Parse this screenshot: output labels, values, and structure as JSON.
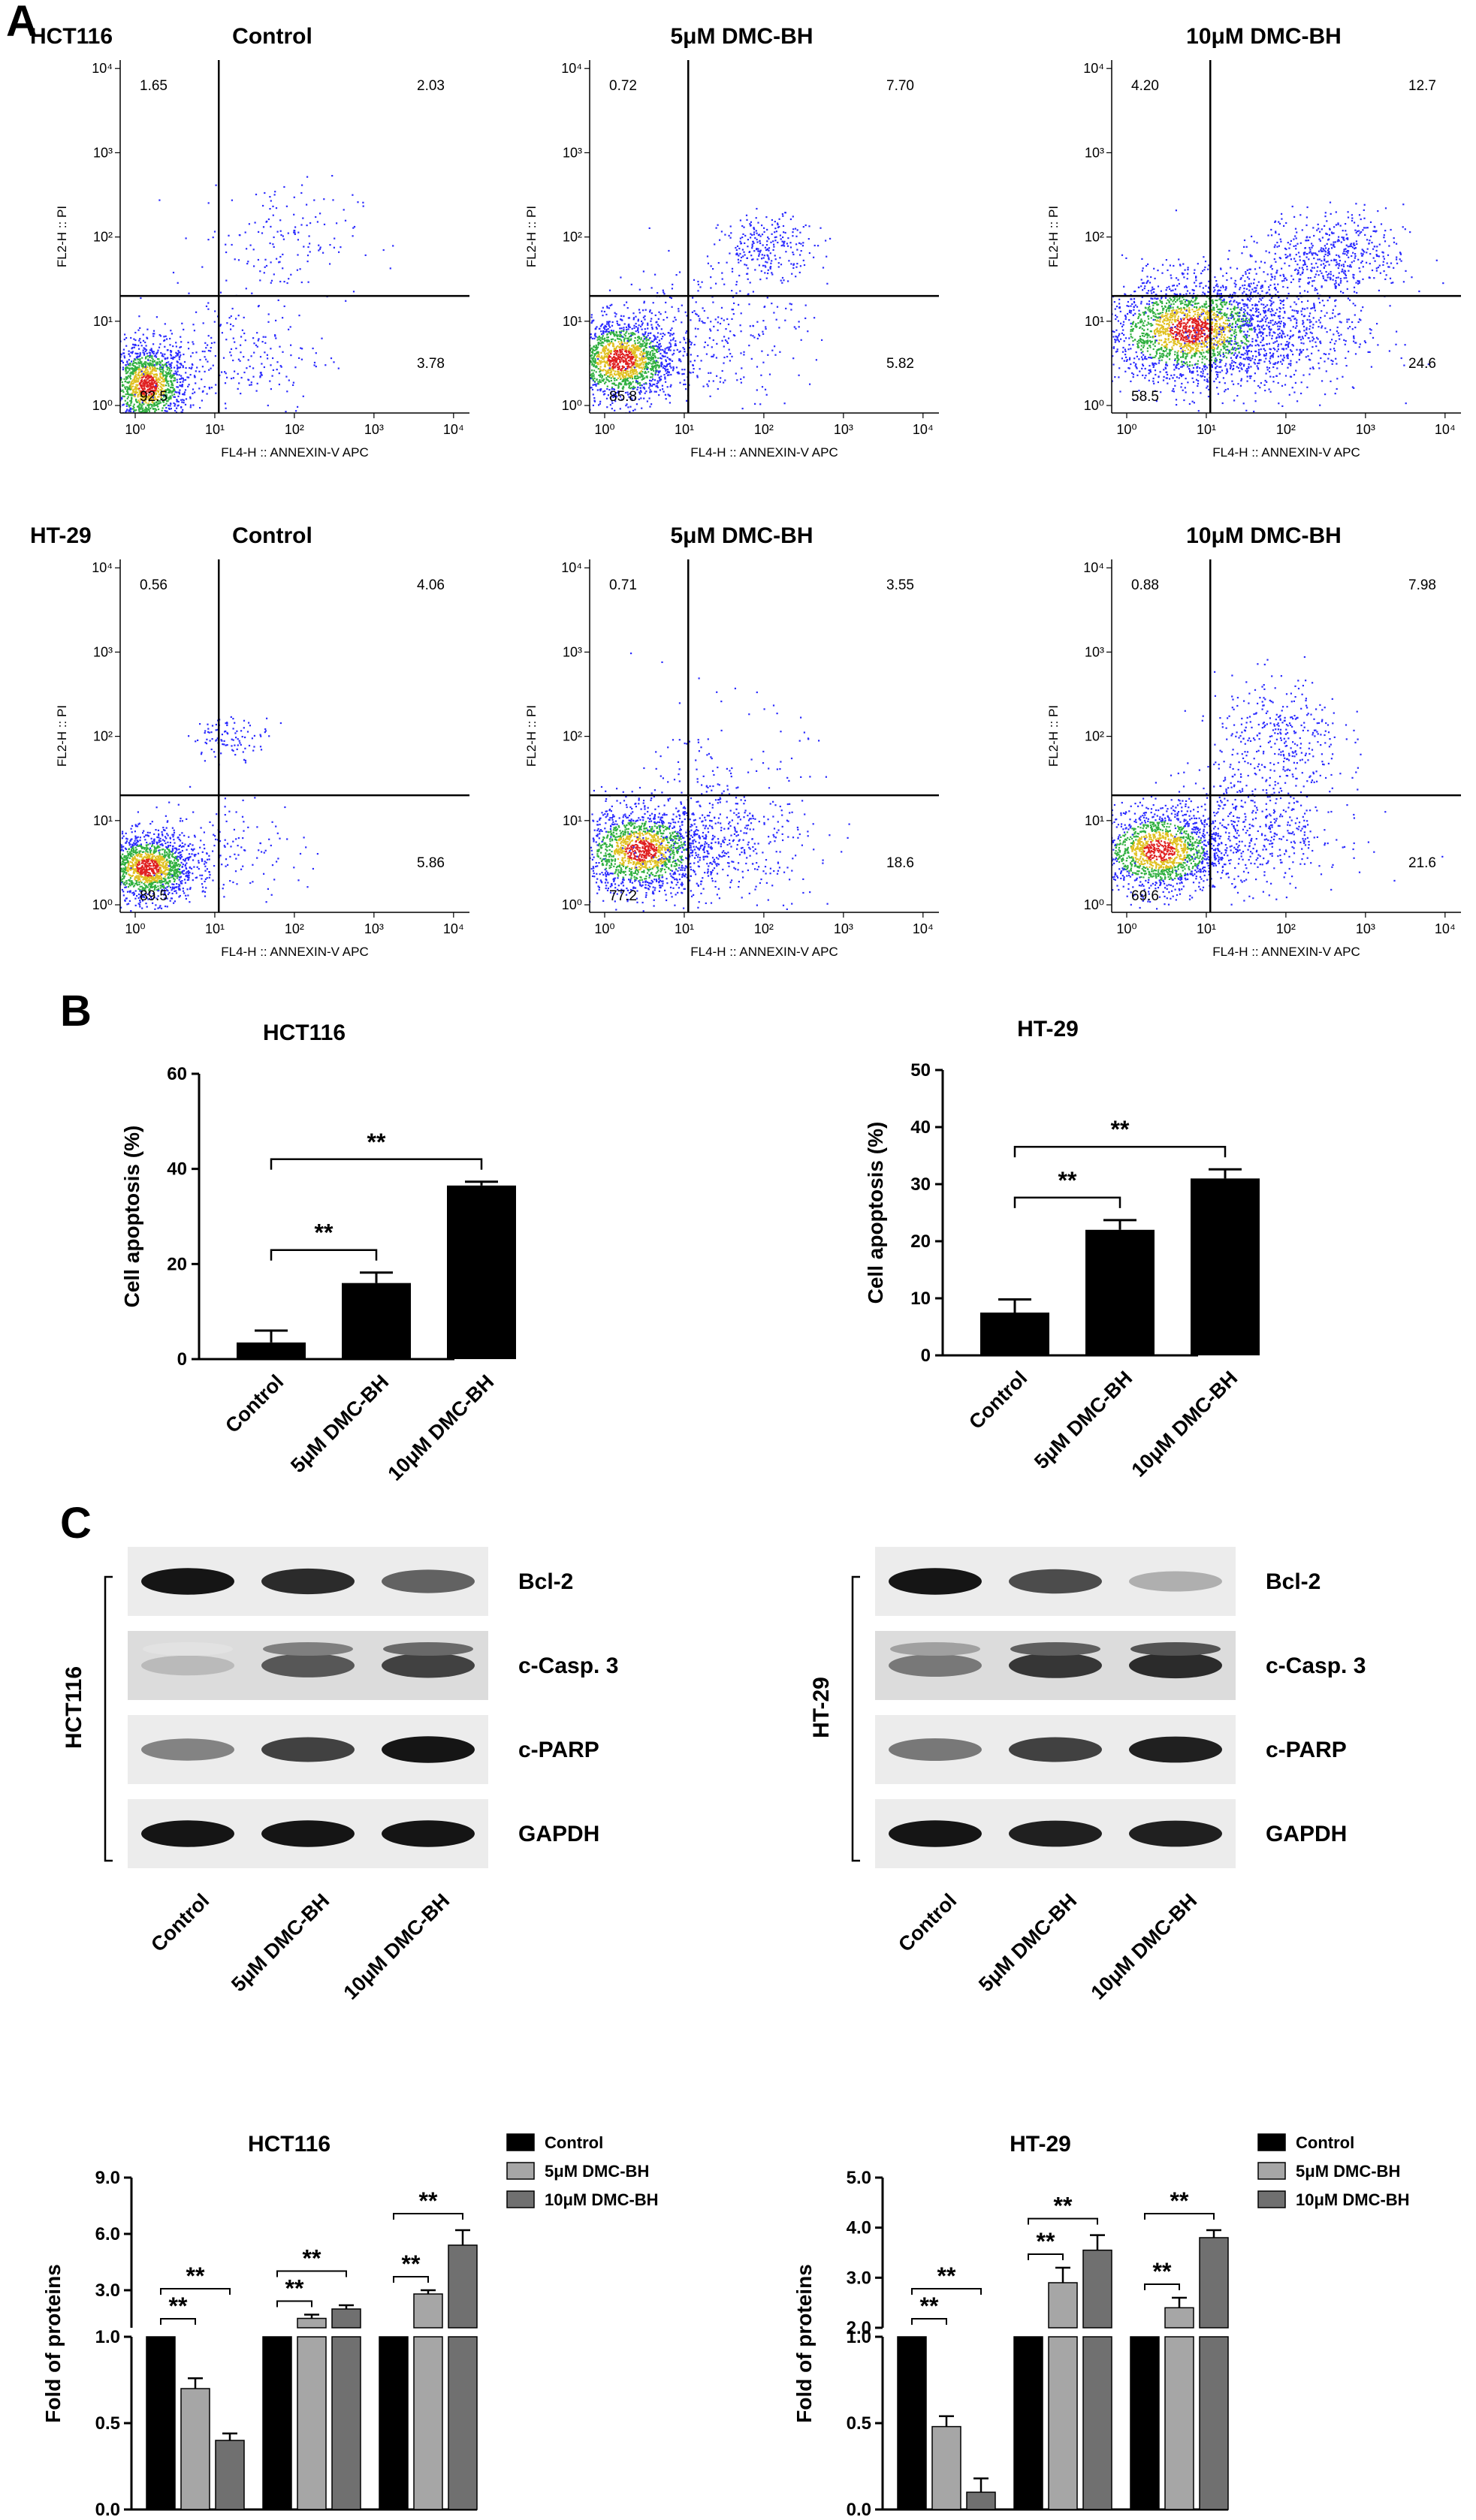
{
  "panels": {
    "A": "A",
    "B": "B",
    "C": "C"
  },
  "flow": {
    "xlabel": "FL4-H :: ANNEXIN-V APC",
    "ylabel": "FL2-H :: PI",
    "ticks": [
      "10⁰",
      "10¹",
      "10²",
      "10³",
      "10⁴"
    ],
    "rows": [
      {
        "cell_line": "HCT116",
        "plots": [
          {
            "title": "Control",
            "q": [
              "1.65",
              "2.03",
              "92.5",
              "3.78"
            ]
          },
          {
            "title": "5μM DMC-BH",
            "q": [
              "0.72",
              "7.70",
              "85.8",
              "5.82"
            ]
          },
          {
            "title": "10μM DMC-BH",
            "q": [
              "4.20",
              "12.7",
              "58.5",
              "24.6"
            ]
          }
        ]
      },
      {
        "cell_line": "HT-29",
        "plots": [
          {
            "title": "Control",
            "q": [
              "0.56",
              "4.06",
              "89.5",
              "5.86"
            ]
          },
          {
            "title": "5μM DMC-BH",
            "q": [
              "0.71",
              "3.55",
              "77.2",
              "18.6"
            ]
          },
          {
            "title": "10μM DMC-BH",
            "q": [
              "0.88",
              "7.98",
              "69.6",
              "21.6"
            ]
          }
        ]
      }
    ]
  },
  "western": {
    "proteins": [
      "Bcl-2",
      "c-Casp. 3",
      "c-PARP",
      "GAPDH"
    ],
    "lanes": [
      "Control",
      "5μM DMC-BH",
      "10μM DMC-BH"
    ],
    "blots": [
      {
        "cell_line": "HCT116",
        "intensity": [
          [
            0.95,
            0.85,
            0.6
          ],
          [
            0.2,
            0.65,
            0.75
          ],
          [
            0.45,
            0.75,
            0.95
          ],
          [
            0.95,
            0.95,
            0.95
          ]
        ]
      },
      {
        "cell_line": "HT-29",
        "intensity": [
          [
            0.95,
            0.7,
            0.25
          ],
          [
            0.5,
            0.8,
            0.85
          ],
          [
            0.5,
            0.75,
            0.9
          ],
          [
            0.95,
            0.9,
            0.9
          ]
        ]
      }
    ]
  },
  "chart_data": [
    {
      "type": "bar",
      "title": "HCT116",
      "ylabel": "Cell apoptosis (%)",
      "categories": [
        "Control",
        "5μM DMC-BH",
        "10μM DMC-BH"
      ],
      "values": [
        3.5,
        16,
        36.5
      ],
      "errors": [
        2.5,
        2.2,
        0.8
      ],
      "ylim": [
        0,
        60
      ],
      "yticks": [
        "0",
        "20",
        "40",
        "60"
      ],
      "significance": [
        {
          "from": 0,
          "to": 1,
          "label": "**"
        },
        {
          "from": 0,
          "to": 2,
          "label": "**"
        }
      ]
    },
    {
      "type": "bar",
      "title": "HT-29",
      "ylabel": "Cell apoptosis (%)",
      "categories": [
        "Control",
        "5μM DMC-BH",
        "10μM DMC-BH"
      ],
      "values": [
        7.5,
        22,
        31
      ],
      "errors": [
        2.3,
        1.7,
        1.6
      ],
      "ylim": [
        0,
        50
      ],
      "yticks": [
        "0",
        "10",
        "20",
        "30",
        "40",
        "50"
      ],
      "significance": [
        {
          "from": 0,
          "to": 1,
          "label": "**"
        },
        {
          "from": 0,
          "to": 2,
          "label": "**"
        }
      ]
    },
    {
      "type": "bar",
      "title": "HCT116",
      "ylabel": "Fold of proteins",
      "categories": [
        "Bcl-2",
        "c-Casp. 3",
        "c-PARP"
      ],
      "series": [
        {
          "name": "Control",
          "values": [
            1.0,
            1.0,
            1.0
          ],
          "errors": [
            0,
            0,
            0
          ],
          "color": "#000000"
        },
        {
          "name": "5μM DMC-BH",
          "values": [
            0.7,
            1.5,
            2.8
          ],
          "errors": [
            0.06,
            0.2,
            0.2
          ],
          "color": "#a6a6a6"
        },
        {
          "name": "10μM DMC-BH",
          "values": [
            0.4,
            2.0,
            5.4
          ],
          "errors": [
            0.04,
            0.2,
            0.8
          ],
          "color": "#707070"
        }
      ],
      "broken_axis": {
        "lower": [
          0,
          1.0
        ],
        "upper": [
          1.0,
          9.0
        ]
      },
      "yticks_lower": [
        "0.0",
        "0.5",
        "1.0"
      ],
      "yticks_upper": [
        "3.0",
        "6.0",
        "9.0"
      ],
      "significance": "**"
    },
    {
      "type": "bar",
      "title": "HT-29",
      "ylabel": "Fold of proteins",
      "categories": [
        "Bcl-2",
        "c-Casp. 3",
        "c-PARP"
      ],
      "series": [
        {
          "name": "Control",
          "values": [
            1.0,
            1.0,
            1.0
          ],
          "errors": [
            0,
            0,
            0
          ],
          "color": "#000000"
        },
        {
          "name": "5μM DMC-BH",
          "values": [
            0.48,
            2.9,
            2.4
          ],
          "errors": [
            0.06,
            0.3,
            0.2
          ],
          "color": "#a6a6a6"
        },
        {
          "name": "10μM DMC-BH",
          "values": [
            0.1,
            3.55,
            3.8
          ],
          "errors": [
            0.08,
            0.3,
            0.15
          ],
          "color": "#707070"
        }
      ],
      "broken_axis": {
        "lower": [
          0,
          1.0
        ],
        "upper": [
          2.0,
          5.0
        ]
      },
      "yticks_lower": [
        "0.0",
        "0.5",
        "1.0"
      ],
      "yticks_upper": [
        "2.0",
        "3.0",
        "4.0",
        "5.0"
      ],
      "significance": "**"
    }
  ]
}
